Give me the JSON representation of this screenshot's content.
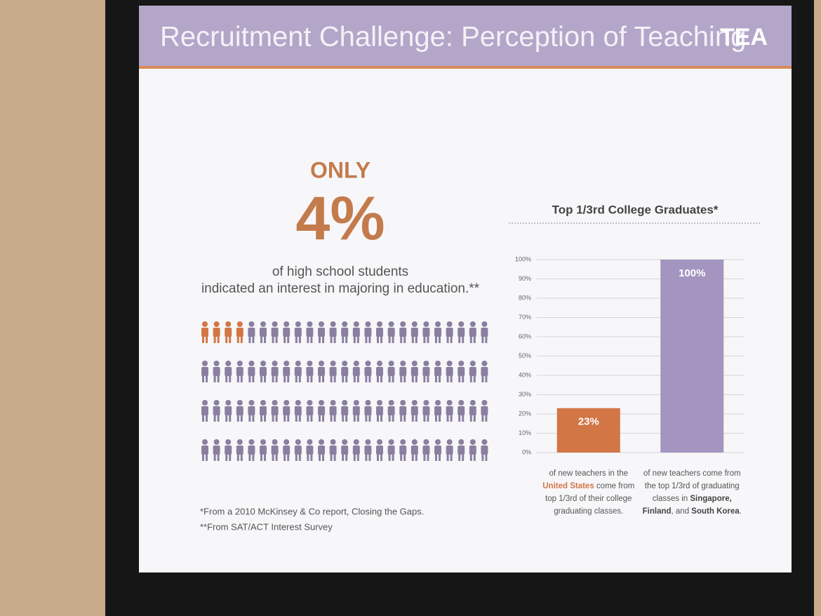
{
  "slide": {
    "title": "Recruitment Challenge: Perception of Teaching",
    "logo": "TEA",
    "stat_intro": "ONLY",
    "stat": "4%",
    "stat_lines": [
      "of high school students",
      "indicated an interest in majoring in education.**"
    ],
    "icons": {
      "total": 100,
      "highlighted": 4
    },
    "footnotes": [
      "*From a 2010 McKinsey & Co report, Closing the Gaps.",
      "**From SAT/ACT Interest Survey"
    ]
  },
  "chart_data": {
    "type": "bar",
    "title": "Top 1/3rd College Graduates*",
    "categories": [
      null,
      null
    ],
    "values": [
      23,
      100
    ],
    "value_labels": [
      "23%",
      "100%"
    ],
    "colors": [
      "#d27646",
      "#a495c0"
    ],
    "ylim": [
      0,
      100
    ],
    "yticks": [
      {
        "value": 0,
        "label": "0%"
      },
      {
        "value": 10,
        "label": "10%"
      },
      {
        "value": 20,
        "label": "20%"
      },
      {
        "value": 30,
        "label": "30%"
      },
      {
        "value": 40,
        "label": "40%"
      },
      {
        "value": 50,
        "label": "50%"
      },
      {
        "value": 60,
        "label": "60%"
      },
      {
        "value": 70,
        "label": "70%"
      },
      {
        "value": 80,
        "label": "80%"
      },
      {
        "value": 90,
        "label": "90%"
      },
      {
        "value": 100,
        "label": "100%"
      }
    ],
    "grid": true,
    "captions": [
      [
        [
          {
            "text": "of new teachers in the",
            "style": "plain"
          }
        ],
        [
          {
            "text": "United States",
            "style": "accent"
          },
          {
            "text": " come from",
            "style": "plain"
          }
        ],
        [
          {
            "text": "top 1/3rd of their college",
            "style": "plain"
          }
        ],
        [
          {
            "text": "graduating classes.",
            "style": "plain"
          }
        ]
      ],
      [
        [
          {
            "text": "of new teachers come from",
            "style": "plain"
          }
        ],
        [
          {
            "text": "the top 1/3rd of graduating",
            "style": "plain"
          }
        ],
        [
          {
            "text": "classes in ",
            "style": "plain"
          },
          {
            "text": "Singapore,",
            "style": "bold"
          }
        ],
        [
          {
            "text": "Finland",
            "style": "bold"
          },
          {
            "text": ", and ",
            "style": "plain"
          },
          {
            "text": "South Korea",
            "style": "bold"
          },
          {
            "text": ".",
            "style": "plain"
          }
        ]
      ]
    ]
  }
}
